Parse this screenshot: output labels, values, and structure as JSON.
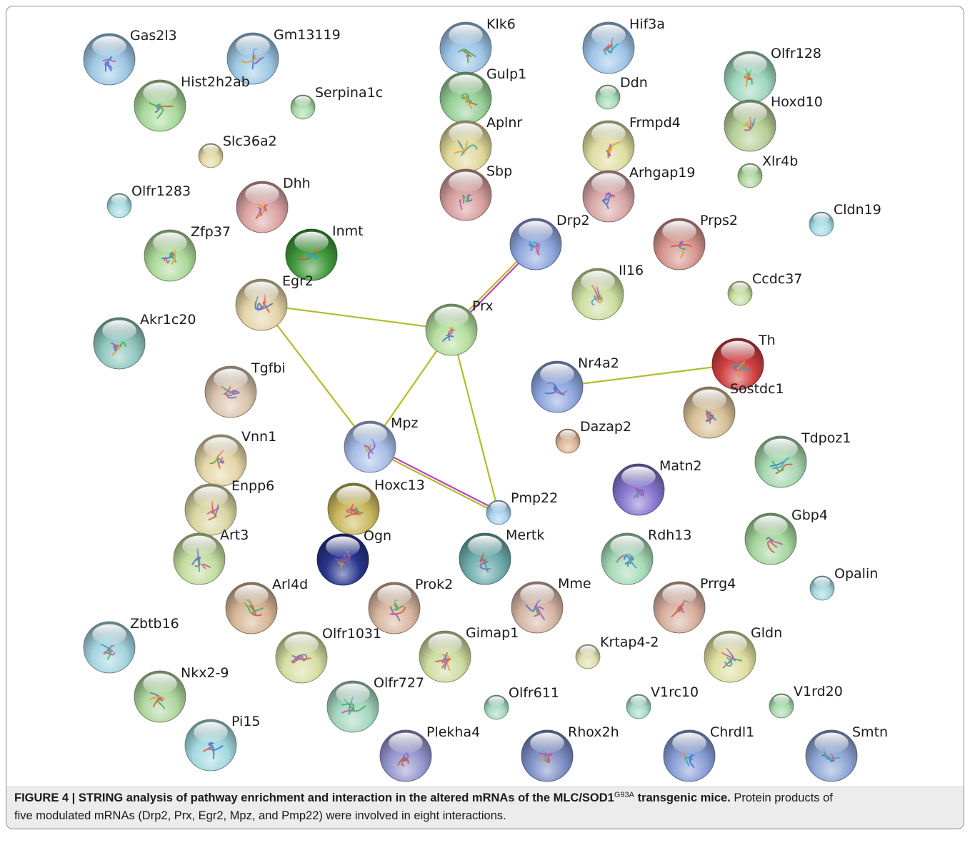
{
  "figure": {
    "network": {
      "nodes": [
        {
          "label": "Gas2l3",
          "color": "#9ec8e6"
        },
        {
          "label": "Gm13119",
          "color": "#9ec8e6"
        },
        {
          "label": "Hist2h2ab",
          "color": "#a9d99a"
        },
        {
          "label": "Serpina1c",
          "color": "#a9d9a8"
        },
        {
          "label": "Slc36a2",
          "color": "#e2d9a2"
        },
        {
          "label": "Olfr1283",
          "color": "#a6dbe2"
        },
        {
          "label": "Dhh",
          "color": "#dca3a3"
        },
        {
          "label": "Zfp37",
          "color": "#aed99a"
        },
        {
          "label": "Inmt",
          "color": "#3f9a3a"
        },
        {
          "label": "Egr2",
          "color": "#e4d3a6"
        },
        {
          "label": "Akr1c20",
          "color": "#8fc7bf"
        },
        {
          "label": "Tgfbi",
          "color": "#dbc4ae"
        },
        {
          "label": "Vnn1",
          "color": "#e4d6a8"
        },
        {
          "label": "Enpp6",
          "color": "#d9d6a2"
        },
        {
          "label": "Art3",
          "color": "#c3dc9e"
        },
        {
          "label": "Arl4d",
          "color": "#d5b595"
        },
        {
          "label": "Zbtb16",
          "color": "#a3d4df"
        },
        {
          "label": "Nkx2-9",
          "color": "#aed69e"
        },
        {
          "label": "Pi15",
          "color": "#a3d9df"
        },
        {
          "label": "Olfr1031",
          "color": "#d6dea2"
        },
        {
          "label": "Olfr727",
          "color": "#a4d6bf"
        },
        {
          "label": "Plekha4",
          "color": "#9696cf"
        },
        {
          "label": "Hoxc13",
          "color": "#c9b85d"
        },
        {
          "label": "Ogn",
          "color": "#26348c"
        },
        {
          "label": "Mpz",
          "color": "#a7bee6"
        },
        {
          "label": "Prok2",
          "color": "#d7b6a0"
        },
        {
          "label": "Gimap1",
          "color": "#cfdca0"
        },
        {
          "label": "Olfr611",
          "color": "#a6d8c1"
        },
        {
          "label": "Mertk",
          "color": "#6eadad"
        },
        {
          "label": "Pmp22",
          "color": "#a6d0ee"
        },
        {
          "label": "Prx",
          "color": "#b6de9e"
        },
        {
          "label": "Klk6",
          "color": "#9ec4e6"
        },
        {
          "label": "Gulp1",
          "color": "#96cf96"
        },
        {
          "label": "Aplnr",
          "color": "#dfd898"
        },
        {
          "label": "Sbp",
          "color": "#d69e9e"
        },
        {
          "label": "Hif3a",
          "color": "#9ec4e6"
        },
        {
          "label": "Ddn",
          "color": "#a6dab6"
        },
        {
          "label": "Frmpd4",
          "color": "#dfdca2"
        },
        {
          "label": "Arhgap19",
          "color": "#d9a7a7"
        },
        {
          "label": "Drp2",
          "color": "#8ea6de"
        },
        {
          "label": "Il16",
          "color": "#cedea0"
        },
        {
          "label": "Prps2",
          "color": "#d6958e"
        },
        {
          "label": "Ccdc37",
          "color": "#c6dea0"
        },
        {
          "label": "Cldn19",
          "color": "#a6dbe6"
        },
        {
          "label": "Olfr128",
          "color": "#9ed6be"
        },
        {
          "label": "Hoxd10",
          "color": "#b6cf96"
        },
        {
          "label": "Xlr4b",
          "color": "#afd69e"
        },
        {
          "label": "Nr4a2",
          "color": "#8ea6de"
        },
        {
          "label": "Th",
          "color": "#cf3f3f"
        },
        {
          "label": "Sostdc1",
          "color": "#d6bf96"
        },
        {
          "label": "Dazap2",
          "color": "#deb696"
        },
        {
          "label": "Tdpoz1",
          "color": "#a6d6ae"
        },
        {
          "label": "Matn2",
          "color": "#8676cf"
        },
        {
          "label": "Gbp4",
          "color": "#a6d69e"
        },
        {
          "label": "Rdh13",
          "color": "#a6dab6"
        },
        {
          "label": "Opalin",
          "color": "#a6d6de"
        },
        {
          "label": "Mme",
          "color": "#d6b6a6"
        },
        {
          "label": "Prrg4",
          "color": "#d6ae9e"
        },
        {
          "label": "Krtap4-2",
          "color": "#dedeae"
        },
        {
          "label": "Gldn",
          "color": "#dedea0"
        },
        {
          "label": "V1rc10",
          "color": "#a6dac6"
        },
        {
          "label": "V1rd20",
          "color": "#a6daae"
        },
        {
          "label": "Rhox2h",
          "color": "#7e8ec6"
        },
        {
          "label": "Chrdl1",
          "color": "#889ed6"
        },
        {
          "label": "Smtn",
          "color": "#8ea6d6"
        }
      ],
      "edges": [
        {
          "source": "Egr2",
          "target": "Prx",
          "colors": [
            "#b3bc2a"
          ]
        },
        {
          "source": "Egr2",
          "target": "Mpz",
          "colors": [
            "#b3bc2a"
          ]
        },
        {
          "source": "Prx",
          "target": "Mpz",
          "colors": [
            "#b3bc2a"
          ]
        },
        {
          "source": "Prx",
          "target": "Pmp22",
          "colors": [
            "#b3bc2a"
          ]
        },
        {
          "source": "Prx",
          "target": "Drp2",
          "colors": [
            "#b3bc2a",
            "#c13fc5"
          ]
        },
        {
          "source": "Mpz",
          "target": "Pmp22",
          "colors": [
            "#c13fc5",
            "#b3bc2a"
          ]
        },
        {
          "source": "Nr4a2",
          "target": "Th",
          "colors": [
            "#b3bc2a"
          ]
        }
      ]
    },
    "caption": {
      "title": "FIGURE 4 | STRING analysis of pathway enrichment and interaction in the altered mRNAs of the MLC/SOD1",
      "superscript": "G93A",
      "title_tail": " transgenic mice.",
      "body_line1": " Protein products of",
      "body_line2": "five modulated mRNAs (Drp2, Prx, Egr2, Mpz, and Pmp22) were involved in eight interactions."
    }
  }
}
